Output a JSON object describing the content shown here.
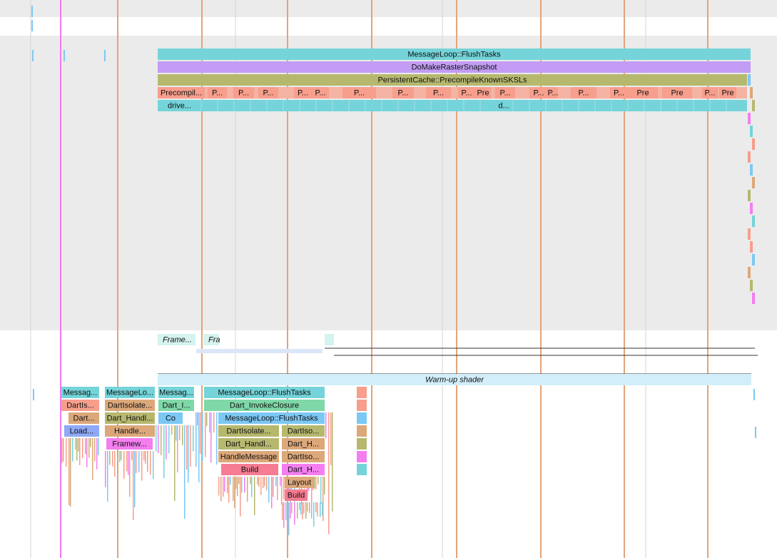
{
  "raster_thread": {
    "rows": [
      [
        "MessageLoop::FlushTasks"
      ],
      [
        "DoMakeRasterSnapshot"
      ],
      [
        "PersistentCache::PrecompileKnownSKSLs"
      ],
      [
        "Precompil...",
        "P...",
        "P...",
        "P...",
        "P...",
        "P...",
        "P...",
        "P...",
        "P...",
        "P...",
        "Pre",
        "P...",
        "P...",
        "P...",
        "P...",
        "P...",
        "Pre",
        "Pre",
        "P...",
        "Pre"
      ],
      [
        "drive...",
        "d..."
      ]
    ]
  },
  "async": {
    "frames": [
      "Frame...",
      "Fra"
    ],
    "warmup": "Warm-up shader"
  },
  "ui_thread": {
    "rows": [
      [
        "Messag...",
        "MessageLo...",
        "Messag...",
        "MessageLoop::FlushTasks"
      ],
      [
        "DartIs...",
        "DartIsolate...",
        "Dart_I...",
        "Dart_InvokeClosure"
      ],
      [
        "Dart...",
        "Dart_Handl...",
        "Co",
        "MessageLoop::FlushTasks"
      ],
      [
        "Load...",
        "Handle...",
        "DartIsolate...",
        "DartIso..."
      ],
      [
        "Framew...",
        "Dart_Handl...",
        "Dart_H..."
      ],
      [
        "HandleMessage",
        "DartIso..."
      ],
      [
        "Build",
        "Dart_H..."
      ],
      [
        "Layout"
      ],
      [
        "Build"
      ]
    ]
  }
}
